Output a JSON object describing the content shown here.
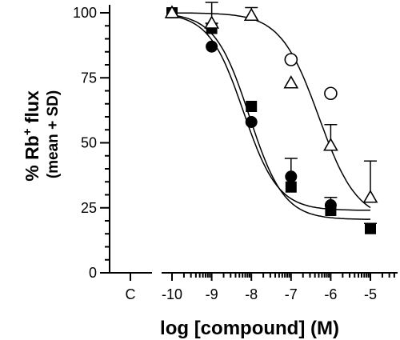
{
  "chart_data": {
    "type": "scatter",
    "xlabel": "log [compound] (M)",
    "ylabel_main": "% Rb",
    "ylabel_sup": "+",
    "ylabel_tail": " flux",
    "ylabel_sub": "(mean + SD)",
    "control_tick_label": "C",
    "x_ticks": [
      "-10",
      "-9",
      "-8",
      "-7",
      "-6",
      "-5"
    ],
    "x_tick_values": [
      -10,
      -9,
      -8,
      -7,
      -6,
      -5
    ],
    "y_ticks": [
      "0",
      "25",
      "50",
      "75",
      "100"
    ],
    "y_tick_values": [
      0,
      25,
      50,
      75,
      100
    ],
    "xlim": [
      -10,
      -4.3
    ],
    "ylim": [
      0,
      100
    ],
    "series": [
      {
        "marker": "filled-square",
        "x": [
          -10,
          -9,
          -8,
          -7,
          -6,
          -5
        ],
        "y": [
          100,
          94,
          64,
          33,
          24,
          17
        ],
        "sd": [
          0,
          2,
          0,
          0,
          0,
          2
        ]
      },
      {
        "marker": "filled-circle",
        "x": [
          -9,
          -8,
          -7,
          -6
        ],
        "y": [
          87,
          58,
          37,
          26
        ],
        "sd": [
          0,
          0,
          7,
          3
        ]
      },
      {
        "marker": "open-triangle",
        "x": [
          -10,
          -8.999,
          -7.999,
          -7,
          -6,
          -5
        ],
        "y": [
          100,
          96,
          99,
          73,
          49,
          29
        ],
        "sd": [
          0,
          8,
          3,
          0,
          8,
          14
        ]
      },
      {
        "marker": "open-circle",
        "x": [
          -7,
          -6
        ],
        "y": [
          82,
          69
        ],
        "sd": [
          0,
          0
        ]
      }
    ],
    "fits": [
      {
        "top": 100,
        "bottom": 20.5,
        "log_ic50": -8.05,
        "hill": 1.0
      },
      {
        "top": 100,
        "bottom": 24,
        "log_ic50": -8.2,
        "hill": 1.0
      },
      {
        "top": 100,
        "bottom": 20,
        "log_ic50": -6.3,
        "hill": 0.9
      }
    ]
  }
}
